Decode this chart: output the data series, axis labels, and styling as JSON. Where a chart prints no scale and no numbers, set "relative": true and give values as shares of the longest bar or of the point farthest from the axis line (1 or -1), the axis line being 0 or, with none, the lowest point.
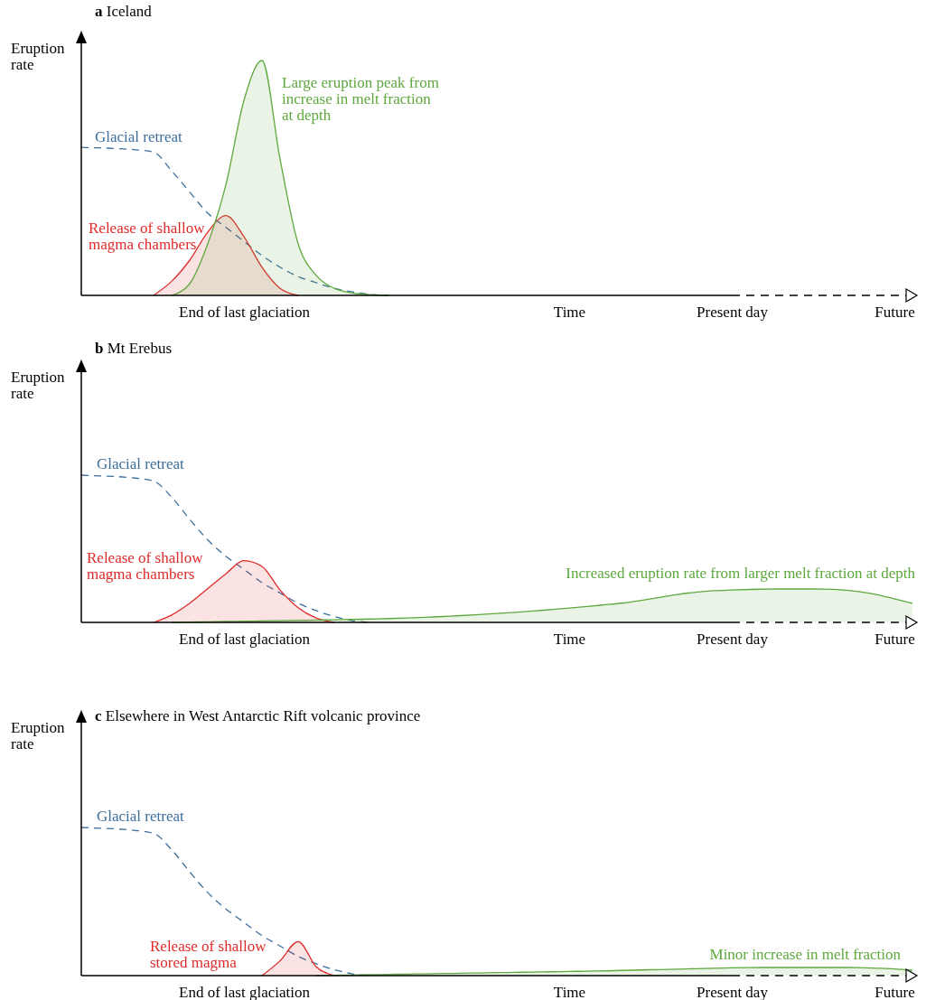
{
  "chart_data": [
    {
      "type": "area",
      "relative": true,
      "title": "a Iceland",
      "ylabel": "Eruption rate",
      "tick_labels": "x",
      "categories": [
        null,
        null,
        null,
        null,
        null,
        null,
        null,
        null,
        null,
        "End of last glaciation",
        null,
        null,
        null,
        null,
        null,
        null,
        null,
        null,
        null,
        null,
        null,
        null,
        null,
        null,
        null,
        null,
        null,
        "Time",
        null,
        null,
        null,
        null,
        null,
        null,
        null,
        null,
        "Present day",
        null,
        null,
        null,
        null,
        null,
        null,
        null,
        null,
        "Future",
        null
      ],
      "series": [
        {
          "name": "Glacial retreat",
          "type": "line",
          "line_style": "dashed",
          "color": "#3c6e9c",
          "values": [
            0.63,
            0.628,
            0.625,
            0.62,
            0.61,
            0.53,
            0.44,
            0.35,
            0.29,
            0.23,
            0.17,
            0.12,
            0.08,
            0.054,
            0.03,
            0.015,
            0.004,
            0,
            null,
            null,
            null,
            null,
            null,
            null,
            null,
            null,
            null,
            null,
            null,
            null,
            null,
            null,
            null,
            null,
            null,
            null,
            null,
            null,
            null,
            null,
            null,
            null,
            null,
            null,
            null,
            null,
            null
          ]
        },
        {
          "name": "Release of shallow magma chambers",
          "color": "#e02a2a",
          "values": [
            null,
            null,
            null,
            null,
            0,
            0.06,
            0.15,
            0.27,
            0.34,
            0.25,
            0.12,
            0.03,
            0,
            null,
            null,
            null,
            null,
            null,
            null,
            null,
            null,
            null,
            null,
            null,
            null,
            null,
            null,
            null,
            null,
            null,
            null,
            null,
            null,
            null,
            null,
            null,
            null,
            null,
            null,
            null,
            null,
            null,
            null,
            null,
            null,
            null,
            null
          ]
        },
        {
          "name": "Large eruption peak from increase in melt fraction at depth",
          "color": "#5ea83e",
          "values": [
            null,
            null,
            null,
            null,
            null,
            0,
            0.05,
            0.22,
            0.47,
            0.83,
            1,
            0.58,
            0.22,
            0.085,
            0.03,
            0.01,
            0.003,
            0,
            null,
            null,
            null,
            null,
            null,
            null,
            null,
            null,
            null,
            null,
            null,
            null,
            null,
            null,
            null,
            null,
            null,
            null,
            null,
            null,
            null,
            null,
            null,
            null,
            null,
            null,
            null,
            null,
            null
          ]
        }
      ]
    },
    {
      "type": "area",
      "relative": true,
      "title": "b Mt Erebus",
      "ylabel": "Eruption rate",
      "tick_labels": "x",
      "categories": [
        null,
        null,
        null,
        null,
        null,
        null,
        null,
        null,
        null,
        "End of last glaciation",
        null,
        null,
        null,
        null,
        null,
        null,
        null,
        null,
        null,
        null,
        null,
        null,
        null,
        null,
        null,
        null,
        null,
        "Time",
        null,
        null,
        null,
        null,
        null,
        null,
        null,
        null,
        "Present day",
        null,
        null,
        null,
        null,
        null,
        null,
        null,
        null,
        "Future",
        null
      ],
      "series": [
        {
          "name": "Glacial retreat",
          "type": "line",
          "line_style": "dashed",
          "color": "#3c6e9c",
          "values": [
            1,
            0.995,
            0.99,
            0.98,
            0.96,
            0.85,
            0.7,
            0.56,
            0.45,
            0.36,
            0.27,
            0.2,
            0.13,
            0.08,
            0.04,
            0.012,
            0,
            null,
            null,
            null,
            null,
            null,
            null,
            null,
            null,
            null,
            null,
            null,
            null,
            null,
            null,
            null,
            null,
            null,
            null,
            null,
            null,
            null,
            null,
            null,
            null,
            null,
            null,
            null,
            null,
            null,
            null
          ]
        },
        {
          "name": "Release of shallow magma chambers",
          "color": "#e02a2a",
          "values": [
            null,
            null,
            null,
            null,
            0,
            0.05,
            0.13,
            0.23,
            0.33,
            0.42,
            0.38,
            0.22,
            0.1,
            0.03,
            0,
            null,
            null,
            null,
            null,
            null,
            null,
            null,
            null,
            null,
            null,
            null,
            null,
            null,
            null,
            null,
            null,
            null,
            null,
            null,
            null,
            null,
            null,
            null,
            null,
            null,
            null,
            null,
            null,
            null,
            null,
            null,
            null
          ]
        },
        {
          "name": "Increased eruption rate from larger melt fraction at depth",
          "color": "#5ea83e",
          "values": [
            null,
            null,
            null,
            null,
            null,
            0,
            0.002,
            0.004,
            0.006,
            0.008,
            0.01,
            0.012,
            0.014,
            0.016,
            0.018,
            0.02,
            0.023,
            0.026,
            0.03,
            0.034,
            0.04,
            0.046,
            0.053,
            0.06,
            0.068,
            0.077,
            0.087,
            0.097,
            0.108,
            0.12,
            0.132,
            0.15,
            0.17,
            0.19,
            0.205,
            0.215,
            0.22,
            0.224,
            0.226,
            0.227,
            0.227,
            0.226,
            0.222,
            0.21,
            0.19,
            0.16,
            0.13
          ]
        }
      ]
    },
    {
      "type": "area",
      "relative": true,
      "title": "c Elsewhere in West Antarctic Rift volcanic province",
      "ylabel": "Eruption rate",
      "tick_labels": "x",
      "categories": [
        null,
        null,
        null,
        null,
        null,
        null,
        null,
        null,
        null,
        "End of last glaciation",
        null,
        null,
        null,
        null,
        null,
        null,
        null,
        null,
        null,
        null,
        null,
        null,
        null,
        null,
        null,
        null,
        null,
        "Time",
        null,
        null,
        null,
        null,
        null,
        null,
        null,
        null,
        "Present day",
        null,
        null,
        null,
        null,
        null,
        null,
        null,
        null,
        "Future",
        null
      ],
      "series": [
        {
          "name": "Glacial retreat",
          "type": "line",
          "line_style": "dashed",
          "color": "#3c6e9c",
          "values": [
            1,
            0.995,
            0.99,
            0.98,
            0.96,
            0.85,
            0.7,
            0.56,
            0.45,
            0.36,
            0.27,
            0.2,
            0.13,
            0.08,
            0.04,
            0.012,
            0,
            null,
            null,
            null,
            null,
            null,
            null,
            null,
            null,
            null,
            null,
            null,
            null,
            null,
            null,
            null,
            null,
            null,
            null,
            null,
            null,
            null,
            null,
            null,
            null,
            null,
            null,
            null,
            null,
            null,
            null
          ]
        },
        {
          "name": "Release of shallow stored magma",
          "color": "#e02a2a",
          "values": [
            null,
            null,
            null,
            null,
            null,
            null,
            null,
            null,
            null,
            null,
            0,
            0.1,
            0.23,
            0.06,
            0,
            null,
            null,
            null,
            null,
            null,
            null,
            null,
            null,
            null,
            null,
            null,
            null,
            null,
            null,
            null,
            null,
            null,
            null,
            null,
            null,
            null,
            null,
            null,
            null,
            null,
            null,
            null,
            null,
            null,
            null,
            null,
            null
          ]
        },
        {
          "name": "Minor increase in melt fraction",
          "color": "#5ea83e",
          "values": [
            null,
            null,
            null,
            null,
            null,
            null,
            null,
            null,
            null,
            null,
            null,
            null,
            null,
            0,
            0.002,
            0.004,
            0.006,
            0.008,
            0.01,
            0.012,
            0.014,
            0.016,
            0.018,
            0.02,
            0.022,
            0.024,
            0.026,
            0.028,
            0.03,
            0.032,
            0.035,
            0.038,
            0.041,
            0.044,
            0.047,
            0.05,
            0.052,
            0.054,
            0.055,
            0.055,
            0.055,
            0.055,
            0.055,
            0.054,
            0.05,
            0.045,
            0.035
          ]
        }
      ]
    }
  ]
}
